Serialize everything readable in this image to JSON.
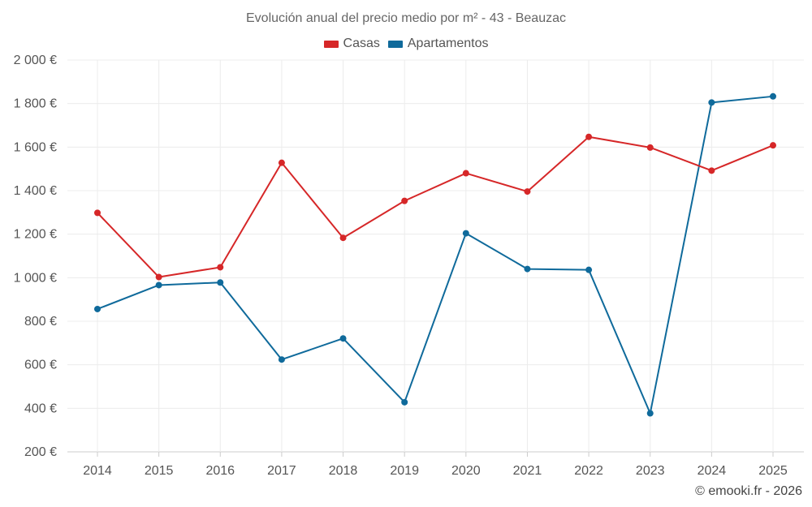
{
  "chart_data": {
    "type": "line",
    "title": "Evolución anual del precio medio por m² - 43 - Beauzac",
    "categories": [
      "2014",
      "2015",
      "2016",
      "2017",
      "2018",
      "2019",
      "2020",
      "2021",
      "2022",
      "2023",
      "2024",
      "2025"
    ],
    "series": [
      {
        "name": "Casas",
        "color": "#d62728",
        "values": [
          1298,
          1003,
          1048,
          1528,
          1183,
          1353,
          1480,
          1396,
          1647,
          1598,
          1492,
          1608
        ]
      },
      {
        "name": "Apartamentos",
        "color": "#0f6a9b",
        "values": [
          856,
          966,
          978,
          624,
          721,
          428,
          1204,
          1040,
          1036,
          377,
          1805,
          1833
        ]
      }
    ],
    "y_ticks": [
      200,
      400,
      600,
      800,
      1000,
      1200,
      1400,
      1600,
      1800,
      2000
    ],
    "y_tick_labels": [
      "200 €",
      "400 €",
      "600 €",
      "800 €",
      "1 000 €",
      "1 200 €",
      "1 400 €",
      "1 600 €",
      "1 800 €",
      "2 000 €"
    ],
    "ylim": [
      200,
      2000
    ],
    "grid": true,
    "legend_position": "top-center",
    "credit": "© emooki.fr - 2026"
  }
}
